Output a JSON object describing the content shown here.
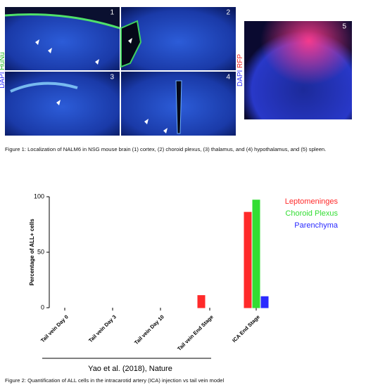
{
  "figure1": {
    "panels": [
      "1",
      "2",
      "3",
      "4",
      "5"
    ],
    "stain_left": [
      "DAPI",
      "HuNu"
    ],
    "stain_right": [
      "DAPI",
      "RFP"
    ],
    "caption": "Figure 1: Localization of NALM6 in NSG mouse brain (1) cortex, (2) choroid plexus, (3) thalamus, and (4) hypothalamus, and (5) spleen."
  },
  "chart_data": {
    "type": "bar",
    "ylabel": "Percentage of ALL+ cells",
    "xlabel": "Yao et al. (2018), Nature",
    "categories": [
      "Tail vein Day 0",
      "Tail vein Day 3",
      "Tail vein Day 10",
      "Tail vein End Stage",
      "ICA End Stage"
    ],
    "series": [
      {
        "name": "Leptomeninges",
        "color": "#ff2a2a",
        "values": [
          0,
          0,
          0,
          11,
          86
        ]
      },
      {
        "name": "Choroid Plexus",
        "color": "#33dd33",
        "values": [
          0,
          0,
          0,
          0,
          97
        ]
      },
      {
        "name": "Parenchyma",
        "color": "#2a2aff",
        "values": [
          0,
          0,
          0,
          0,
          10
        ]
      }
    ],
    "ylim": [
      0,
      100
    ],
    "yticks": [
      0,
      50,
      100
    ],
    "legend": "upper right"
  },
  "figure2": {
    "caption": "Figure 2: Quantification of ALL cells in the intracarotid artery (ICA) injection vs tail vein model"
  }
}
